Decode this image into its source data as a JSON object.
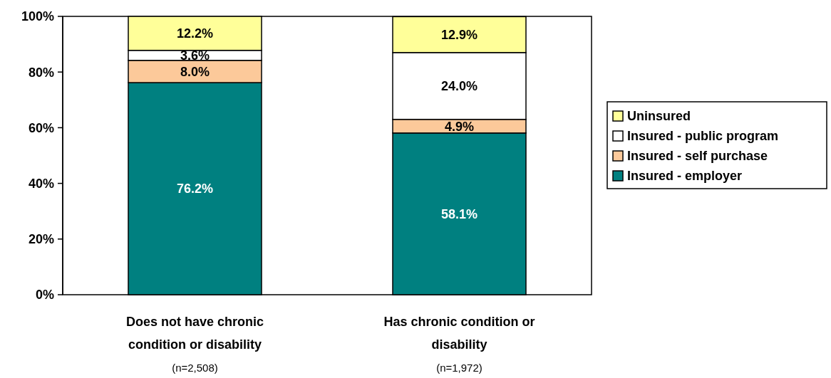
{
  "chart_data": {
    "type": "bar",
    "stacked": true,
    "categories": [
      "Does not have chronic condition or disability",
      "Has chronic condition or disability"
    ],
    "series": [
      {
        "name": "Insured - employer",
        "color": "#008080",
        "values": [
          76.2,
          58.1
        ],
        "value_labels": [
          "76.2%",
          "58.1%"
        ]
      },
      {
        "name": "Insured - self purchase",
        "color": "#fcc99a",
        "values": [
          8.0,
          4.9
        ],
        "value_labels": [
          "8.0%",
          "4.9%"
        ]
      },
      {
        "name": "Insured - public program",
        "color": "#ffffff",
        "values": [
          3.6,
          24.0
        ],
        "value_labels": [
          "3.6%",
          "24.0%"
        ]
      },
      {
        "name": "Uninsured",
        "color": "#ffff99",
        "values": [
          12.2,
          12.9
        ],
        "value_labels": [
          "12.2%",
          "12.9%"
        ]
      }
    ],
    "ylim": [
      0,
      100
    ],
    "yticks": [
      {
        "value": 0,
        "label": "0%"
      },
      {
        "value": 20,
        "label": "20%"
      },
      {
        "value": 40,
        "label": "40%"
      },
      {
        "value": 60,
        "label": "60%"
      },
      {
        "value": 80,
        "label": "80%"
      },
      {
        "value": 100,
        "label": "100%"
      }
    ],
    "grid": false,
    "legend": "right",
    "annotations": [
      "(n=2,508)",
      "(n=1,972)"
    ]
  }
}
